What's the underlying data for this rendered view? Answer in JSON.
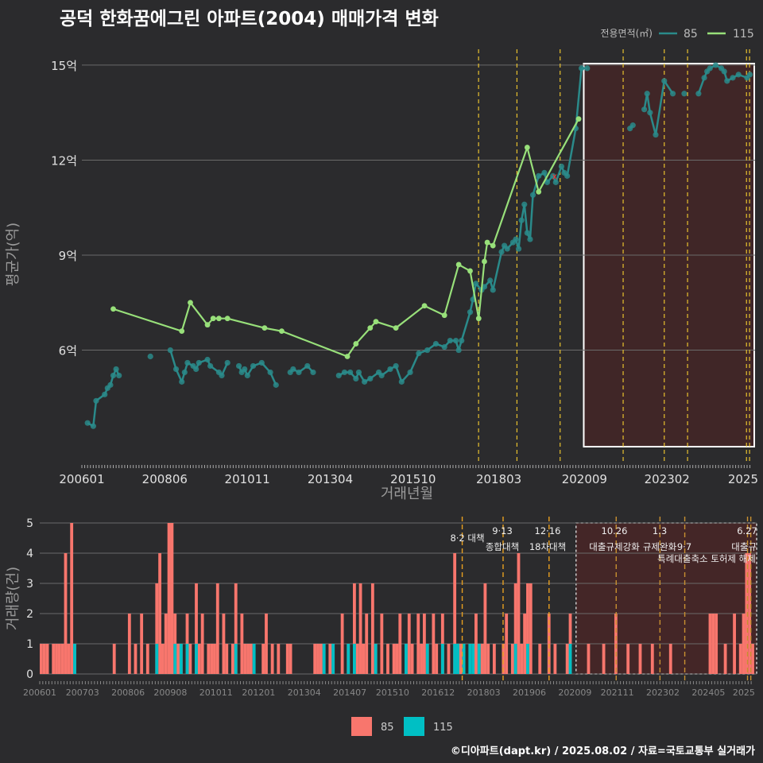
{
  "title": "공덕 한화꿈에그린 아파트(2004) 매매가격 변화",
  "legend_top": {
    "title": "전용면적(㎡)",
    "items": [
      "85",
      "115"
    ]
  },
  "legend_bottom": {
    "items": [
      "85",
      "115"
    ]
  },
  "footer": "©디아파트(dapt.kr) / 2025.08.02 / 자료=국토교통부 실거래가",
  "colors": {
    "bg": "#2b2b2d",
    "s85_price": "#2a8a8a",
    "s115_price": "#98e07a",
    "s85_vol": "#f8766d",
    "s115_vol": "#00bfc4",
    "policy_line": "#e8c12e",
    "highlight": "#5a2222"
  },
  "chart_data": [
    {
      "type": "line",
      "title": "공덕 한화꿈에그린 아파트(2004) 매매가격 변화",
      "xlabel": "거래년월",
      "ylabel": "평균가(억)",
      "x_tick_labels": [
        "200601",
        "200806",
        "201011",
        "201304",
        "201510",
        "201803",
        "202009",
        "202302",
        "2025"
      ],
      "y_tick_labels": [
        "6억",
        "9억",
        "12억",
        "15억"
      ],
      "ylim": [
        2.5,
        15.5
      ],
      "grid": true,
      "legend": "top-right",
      "series": [
        {
          "name": "85",
          "x": [
            "2006-03",
            "2006-05",
            "2006-06",
            "2006-09",
            "2006-10",
            "2006-11",
            "2006-12",
            "2007-01",
            "2007-02",
            "2008-01",
            "2008-08",
            "2008-10",
            "2008-12",
            "2009-01",
            "2009-02",
            "2009-04",
            "2009-05",
            "2009-06",
            "2009-09",
            "2009-10",
            "2010-01",
            "2010-02",
            "2010-04",
            "2010-08",
            "2010-09",
            "2010-10",
            "2010-11",
            "2011-01",
            "2011-04",
            "2011-07",
            "2011-09",
            "2012-02",
            "2012-03",
            "2012-05",
            "2012-08",
            "2012-10",
            "2013-07",
            "2013-09",
            "2013-11",
            "2014-01",
            "2014-02",
            "2014-04",
            "2014-06",
            "2014-09",
            "2014-10",
            "2015-01",
            "2015-03",
            "2015-05",
            "2015-08",
            "2015-11",
            "2016-02",
            "2016-05",
            "2016-08",
            "2016-10",
            "2016-12",
            "2017-01",
            "2017-02",
            "2017-05",
            "2017-06",
            "2017-07",
            "2017-09",
            "2017-10",
            "2017-12",
            "2018-01",
            "2018-04",
            "2018-05",
            "2018-06",
            "2018-08",
            "2018-09",
            "2018-10",
            "2018-11",
            "2018-12",
            "2019-01",
            "2019-02",
            "2019-03",
            "2019-05",
            "2019-07",
            "2019-08",
            "2019-10",
            "2019-11",
            "2020-01",
            "2020-02",
            "2020-03",
            "2020-06",
            "2020-08",
            "2020-10",
            "2022-01",
            "2022-02",
            "2022-06",
            "2022-07",
            "2022-08",
            "2022-10",
            "2023-01",
            "2023-04",
            "2023-08",
            "2024-01",
            "2024-03",
            "2024-04",
            "2024-05",
            "2024-07",
            "2024-09",
            "2024-10",
            "2024-11",
            "2025-01",
            "2025-03",
            "2025-06",
            "2025-07"
          ],
          "values": [
            3.7,
            3.6,
            4.4,
            4.6,
            4.8,
            4.9,
            5.2,
            5.4,
            5.2,
            5.8,
            6.0,
            5.4,
            5.0,
            5.3,
            5.6,
            5.5,
            5.4,
            5.6,
            5.7,
            5.5,
            5.3,
            5.2,
            5.6,
            5.5,
            5.3,
            5.4,
            5.2,
            5.5,
            5.6,
            5.3,
            4.9,
            5.3,
            5.4,
            5.3,
            5.5,
            5.3,
            5.2,
            5.3,
            5.3,
            5.1,
            5.3,
            5.0,
            5.1,
            5.3,
            5.2,
            5.4,
            5.5,
            5.0,
            5.3,
            5.9,
            6.0,
            6.2,
            6.1,
            6.3,
            6.3,
            6.0,
            6.3,
            7.2,
            7.6,
            8.1,
            7.9,
            8.0,
            8.2,
            7.9,
            9.1,
            9.3,
            9.2,
            9.4,
            9.5,
            9.2,
            10.1,
            10.6,
            9.7,
            9.5,
            10.9,
            11.5,
            11.6,
            11.3,
            11.5,
            11.3,
            11.8,
            11.6,
            11.5,
            13.0,
            14.9,
            14.9,
            13.0,
            13.1,
            13.6,
            14.1,
            13.5,
            12.8,
            14.5,
            14.1,
            14.1,
            14.1,
            14.6,
            14.8,
            14.9,
            15.0,
            14.9,
            14.8,
            14.5,
            14.6,
            14.7,
            14.6,
            14.7
          ]
        },
        {
          "name": "115",
          "x": [
            "2006-12",
            "2008-12",
            "2009-03",
            "2009-09",
            "2009-11",
            "2010-01",
            "2010-04",
            "2011-05",
            "2011-11",
            "2013-10",
            "2014-01",
            "2014-06",
            "2014-08",
            "2015-03",
            "2016-01",
            "2016-08",
            "2017-01",
            "2017-05",
            "2017-08",
            "2017-10",
            "2017-11",
            "2018-01",
            "2019-01",
            "2019-05",
            "2020-07"
          ],
          "values": [
            7.3,
            6.6,
            7.5,
            6.8,
            7.0,
            7.0,
            7.0,
            6.7,
            6.6,
            5.8,
            6.2,
            6.7,
            6.9,
            6.7,
            7.4,
            7.1,
            8.7,
            8.5,
            7.0,
            8.8,
            9.4,
            9.3,
            12.4,
            11.0,
            13.3
          ]
        }
      ],
      "annotations": [
        "x"
      ]
    },
    {
      "type": "bar",
      "ylabel": "거래량(건)",
      "x_tick_labels": [
        "200601",
        "200703",
        "200806",
        "200908",
        "201011",
        "201201",
        "201304",
        "201407",
        "201510",
        "201612",
        "201803",
        "201906",
        "202009",
        "202111",
        "202302",
        "202405",
        "2025"
      ],
      "y_tick_labels": [
        "0",
        "1",
        "2",
        "3",
        "4",
        "5"
      ],
      "ylim": [
        0,
        5
      ],
      "grid": true,
      "legend": "bottom",
      "policy_labels": [
        {
          "date": "8·2 대책",
          "text": ""
        },
        {
          "date": "9·13",
          "text": "종합대책"
        },
        {
          "date": "12·16",
          "text": "18차대책"
        },
        {
          "date": "10.26",
          "text": "대출규제강화"
        },
        {
          "date": "1.3",
          "text": "규제완화"
        },
        {
          "date": "9·7",
          "text": "특례대출축소 토허제 해제"
        },
        {
          "date": "6.27",
          "text": "대출규"
        }
      ],
      "series": [
        {
          "name": "85",
          "bars": [
            [
              "2006-01",
              1
            ],
            [
              "2006-02",
              1
            ],
            [
              "2006-03",
              1
            ],
            [
              "2006-05",
              1
            ],
            [
              "2006-06",
              1
            ],
            [
              "2006-07",
              1
            ],
            [
              "2006-08",
              1
            ],
            [
              "2006-09",
              4
            ],
            [
              "2006-10",
              1
            ],
            [
              "2006-11",
              5
            ],
            [
              "2006-12",
              1
            ],
            [
              "2008-01",
              1
            ],
            [
              "2008-06",
              2
            ],
            [
              "2008-08",
              1
            ],
            [
              "2008-10",
              2
            ],
            [
              "2008-12",
              1
            ],
            [
              "2009-03",
              3
            ],
            [
              "2009-04",
              4
            ],
            [
              "2009-05",
              1
            ],
            [
              "2009-06",
              2
            ],
            [
              "2009-07",
              5
            ],
            [
              "2009-08",
              5
            ],
            [
              "2009-09",
              2
            ],
            [
              "2009-10",
              1
            ],
            [
              "2009-11",
              1
            ],
            [
              "2010-01",
              2
            ],
            [
              "2010-02",
              1
            ],
            [
              "2010-04",
              3
            ],
            [
              "2010-05",
              1
            ],
            [
              "2010-06",
              2
            ],
            [
              "2010-08",
              1
            ],
            [
              "2010-09",
              1
            ],
            [
              "2010-10",
              1
            ],
            [
              "2010-11",
              3
            ],
            [
              "2011-01",
              2
            ],
            [
              "2011-02",
              1
            ],
            [
              "2011-04",
              1
            ],
            [
              "2011-05",
              3
            ],
            [
              "2011-07",
              2
            ],
            [
              "2011-08",
              1
            ],
            [
              "2011-09",
              1
            ],
            [
              "2011-10",
              1
            ],
            [
              "2012-02",
              1
            ],
            [
              "2012-03",
              2
            ],
            [
              "2012-05",
              1
            ],
            [
              "2012-07",
              1
            ],
            [
              "2012-10",
              1
            ],
            [
              "2012-11",
              1
            ],
            [
              "2013-07",
              1
            ],
            [
              "2013-08",
              1
            ],
            [
              "2013-09",
              1
            ],
            [
              "2013-10",
              1
            ],
            [
              "2013-12",
              1
            ],
            [
              "2014-01",
              1
            ],
            [
              "2014-04",
              2
            ],
            [
              "2014-06",
              1
            ],
            [
              "2014-08",
              3
            ],
            [
              "2014-09",
              1
            ],
            [
              "2014-10",
              3
            ],
            [
              "2014-11",
              1
            ],
            [
              "2014-12",
              2
            ],
            [
              "2015-02",
              3
            ],
            [
              "2015-03",
              1
            ],
            [
              "2015-05",
              2
            ],
            [
              "2015-07",
              1
            ],
            [
              "2015-09",
              1
            ],
            [
              "2015-10",
              1
            ],
            [
              "2015-11",
              2
            ],
            [
              "2016-01",
              1
            ],
            [
              "2016-02",
              2
            ],
            [
              "2016-03",
              1
            ],
            [
              "2016-05",
              2
            ],
            [
              "2016-06",
              1
            ],
            [
              "2016-07",
              2
            ],
            [
              "2016-08",
              1
            ],
            [
              "2016-10",
              2
            ],
            [
              "2016-11",
              1
            ],
            [
              "2017-01",
              2
            ],
            [
              "2017-03",
              1
            ],
            [
              "2017-05",
              4
            ],
            [
              "2017-06",
              1
            ],
            [
              "2017-07",
              1
            ],
            [
              "2017-12",
              2
            ],
            [
              "2018-01",
              1
            ],
            [
              "2018-02",
              1
            ],
            [
              "2018-03",
              3
            ],
            [
              "2018-04",
              1
            ],
            [
              "2018-06",
              1
            ],
            [
              "2018-09",
              1
            ],
            [
              "2018-10",
              2
            ],
            [
              "2018-12",
              1
            ],
            [
              "2019-01",
              3
            ],
            [
              "2019-02",
              4
            ],
            [
              "2019-03",
              1
            ],
            [
              "2019-04",
              2
            ],
            [
              "2019-05",
              3
            ],
            [
              "2019-06",
              3
            ],
            [
              "2019-09",
              1
            ],
            [
              "2019-12",
              2
            ],
            [
              "2020-02",
              1
            ],
            [
              "2020-06",
              1
            ],
            [
              "2020-07",
              2
            ],
            [
              "2021-01",
              1
            ],
            [
              "2021-06",
              1
            ],
            [
              "2021-10",
              2
            ],
            [
              "2022-02",
              1
            ],
            [
              "2022-06",
              1
            ],
            [
              "2022-10",
              1
            ],
            [
              "2023-04",
              1
            ],
            [
              "2024-05",
              2
            ],
            [
              "2024-06",
              2
            ],
            [
              "2024-07",
              2
            ],
            [
              "2024-10",
              1
            ],
            [
              "2025-01",
              2
            ],
            [
              "2025-03",
              1
            ],
            [
              "2025-04",
              2
            ],
            [
              "2025-05",
              4
            ],
            [
              "2025-06",
              4
            ],
            [
              "2025-07",
              1
            ]
          ]
        },
        {
          "name": "115",
          "bars": [
            [
              "2006-12",
              1
            ],
            [
              "2009-03",
              1
            ],
            [
              "2009-09",
              1
            ],
            [
              "2009-11",
              1
            ],
            [
              "2010-01",
              1
            ],
            [
              "2010-04",
              1
            ],
            [
              "2011-05",
              1
            ],
            [
              "2011-11",
              1
            ],
            [
              "2013-10",
              1
            ],
            [
              "2014-01",
              1
            ],
            [
              "2014-06",
              1
            ],
            [
              "2014-08",
              1
            ],
            [
              "2015-03",
              1
            ],
            [
              "2016-01",
              1
            ],
            [
              "2016-08",
              1
            ],
            [
              "2017-01",
              1
            ],
            [
              "2017-05",
              1
            ],
            [
              "2017-06",
              1
            ],
            [
              "2017-08",
              1
            ],
            [
              "2017-10",
              1
            ],
            [
              "2017-11",
              1
            ],
            [
              "2018-01",
              1
            ],
            [
              "2019-01",
              1
            ],
            [
              "2019-05",
              1
            ],
            [
              "2020-07",
              1
            ]
          ]
        }
      ]
    }
  ]
}
